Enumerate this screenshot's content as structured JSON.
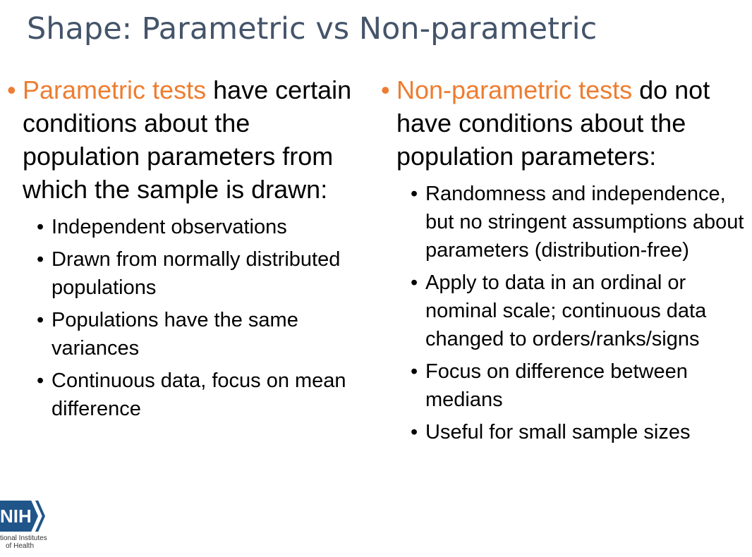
{
  "slide": {
    "title": "Shape: Parametric vs Non-parametric",
    "left": {
      "bullet": "•",
      "highlight": "Parametric tests",
      "text": " have certain conditions about the population parameters from which the sample is drawn:",
      "items": [
        "Independent observations",
        "Drawn from normally distributed populations",
        "Populations have the same variances",
        "Continuous data, focus on mean difference"
      ]
    },
    "right": {
      "bullet": "•",
      "highlight": "Non-parametric tests",
      "text": " do not have conditions about the population parameters:",
      "items": [
        "Randomness and independence, but no stringent assumptions about parameters (distribution-free)",
        "Apply to data in an ordinal or nominal scale; continuous data changed to orders/ranks/signs",
        "Focus on difference between medians",
        "Useful for small sample sizes"
      ]
    },
    "sub_bullet": "•"
  },
  "logo": {
    "mark": "NIH",
    "line1": "tional Institutes",
    "line2": "of Health"
  },
  "colors": {
    "title": "#44546a",
    "accent": "#ed7d31",
    "logo": "#20558a"
  }
}
